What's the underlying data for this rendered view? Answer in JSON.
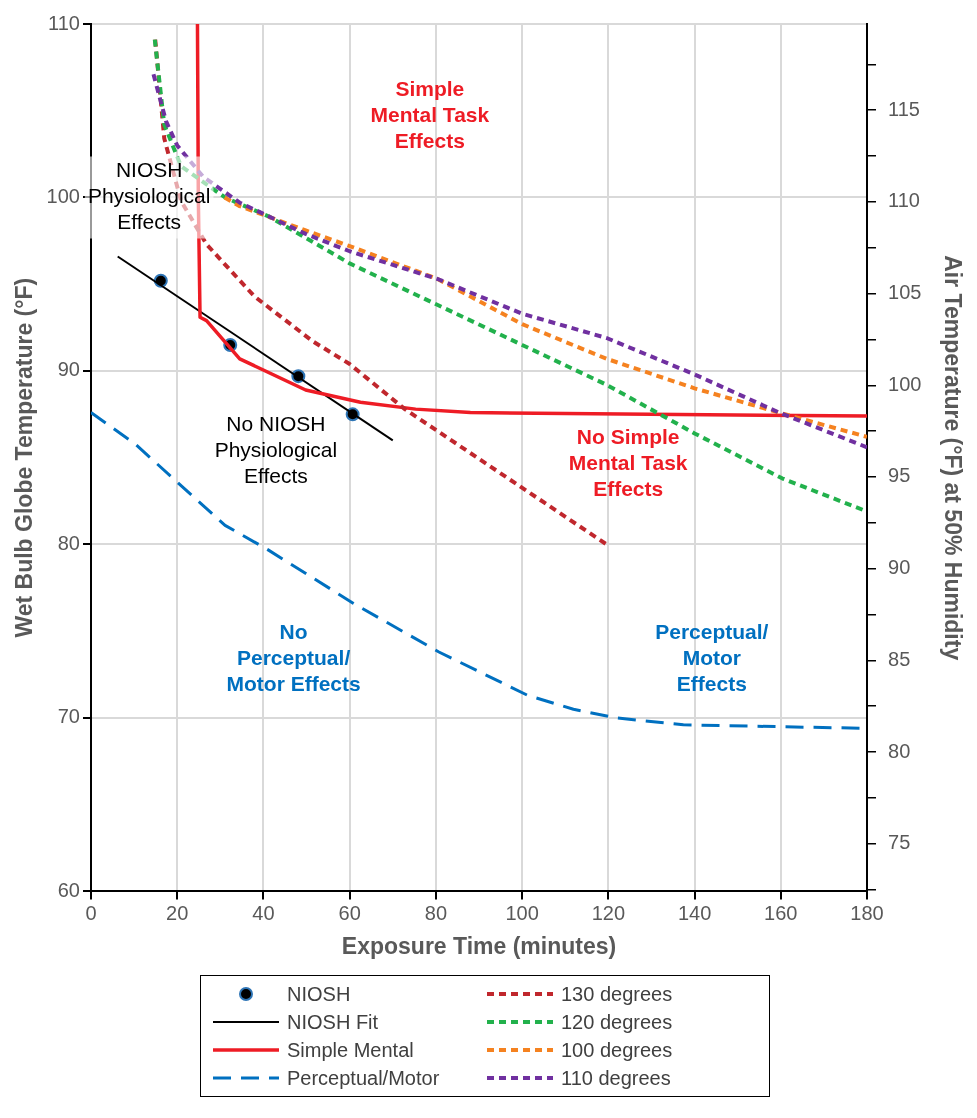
{
  "chart_data": {
    "type": "line",
    "xlabel": "Exposure Time (minutes)",
    "ylabel": "Wet Bulb Globe Temperature (°F)",
    "y2label": "Air Temperature (°F) at 50% Humidity",
    "xlim": [
      0,
      180
    ],
    "xticks": [
      0,
      20,
      40,
      60,
      80,
      100,
      120,
      140,
      160,
      180
    ],
    "ylim": [
      60,
      110
    ],
    "yticks": [
      60,
      70,
      80,
      90,
      100,
      110
    ],
    "y2lim": [
      72.4,
      119.7
    ],
    "y2ticks": [
      {
        "value": 72.5,
        "label": null
      },
      75,
      {
        "value": 77.5,
        "label": null
      },
      80,
      {
        "value": 82.5,
        "label": null
      },
      85,
      {
        "value": 87.5,
        "label": null
      },
      90,
      {
        "value": 92.5,
        "label": null
      },
      95,
      {
        "value": 97.5,
        "label": null
      },
      100,
      {
        "value": 102.5,
        "label": null
      },
      105,
      {
        "value": 107.5,
        "label": null
      },
      110,
      {
        "value": 112.5,
        "label": null
      },
      115,
      {
        "value": 117.5,
        "label": null
      }
    ],
    "grid": true,
    "legend": "bottom",
    "series": [
      {
        "name": "NIOSH",
        "type": "scatter",
        "marker": "circle",
        "color": "#000000",
        "x": [
          16.2,
          32.3,
          48.1,
          60.7
        ],
        "values": [
          95.2,
          91.5,
          89.7,
          87.5
        ]
      },
      {
        "name": "NIOSH Fit",
        "line_style": "solid",
        "color": "#000000",
        "x": [
          6.2,
          70
        ],
        "values": [
          96.6,
          86
        ]
      },
      {
        "name": "Simple Mental",
        "line_style": "solid",
        "color": "#ee1c25",
        "x": [
          24.7,
          24.9,
          25.3,
          26.8,
          34.5,
          49.8,
          62.5,
          75.3,
          88,
          180
        ],
        "values": [
          110,
          100,
          93.1,
          92.9,
          90.7,
          88.9,
          88.2,
          87.8,
          87.6,
          87.4
        ]
      },
      {
        "name": "Perceptual/Motor",
        "line_style": "dashed",
        "color": "#0070c0",
        "x": [
          0,
          10.2,
          31.1,
          41,
          60.9,
          80.7,
          101.3,
          111.9,
          121.8,
          137.4,
          180
        ],
        "values": [
          87.6,
          85.8,
          81.1,
          79.7,
          76.6,
          73.8,
          71.3,
          70.5,
          70,
          69.6,
          69.4
        ]
      },
      {
        "name": "130 degrees",
        "line_style": "dotted",
        "color": "#c0272d",
        "x": [
          14.9,
          17,
          20.9,
          26.8,
          37.9,
          51.5,
          60,
          72.8,
          119.6
        ],
        "values": [
          109.1,
          103.4,
          99.8,
          97.3,
          94.3,
          91.7,
          90.4,
          87.8,
          80
        ]
      },
      {
        "name": "120 degrees",
        "line_style": "dotted",
        "color": "#22b14c",
        "x": [
          14.8,
          17,
          20.9,
          31.1,
          41.3,
          60,
          79.6,
          100,
          119.6,
          140,
          160.4,
          180
        ],
        "values": [
          109.1,
          104.2,
          101.8,
          100,
          98.9,
          96.2,
          93.9,
          91.5,
          89.2,
          86.4,
          83.8,
          81.9
        ]
      },
      {
        "name": "100 degrees",
        "line_style": "dotted",
        "color": "#f58220",
        "x": [
          31,
          34.5,
          49.8,
          60,
          80.4,
          100,
          119.6,
          140,
          159.6,
          180
        ],
        "values": [
          100,
          99.5,
          98.1,
          97.2,
          95.3,
          92.7,
          90.7,
          89,
          87.6,
          86.2
        ]
      },
      {
        "name": "110 degrees",
        "line_style": "dotted",
        "color": "#7030a0",
        "x": [
          14.5,
          17.4,
          20,
          26,
          34.5,
          49.8,
          60,
          80.4,
          100,
          119.6,
          140,
          159.6,
          180
        ],
        "values": [
          107.1,
          104.4,
          103,
          101.2,
          99.7,
          97.9,
          96.9,
          95.3,
          93.3,
          91.9,
          89.8,
          87.6,
          85.6
        ]
      }
    ],
    "annotations": [
      "Simple\nMental Task\nEffects",
      "NIOSH\nPhysiological\nEffects",
      "No NIOSH\nPhysiological\nEffects",
      "No Simple\nMental Task\nEffects",
      "No\nPerceptual/\nMotor Effects",
      "Perceptual/\nMotor\nEffects"
    ]
  }
}
